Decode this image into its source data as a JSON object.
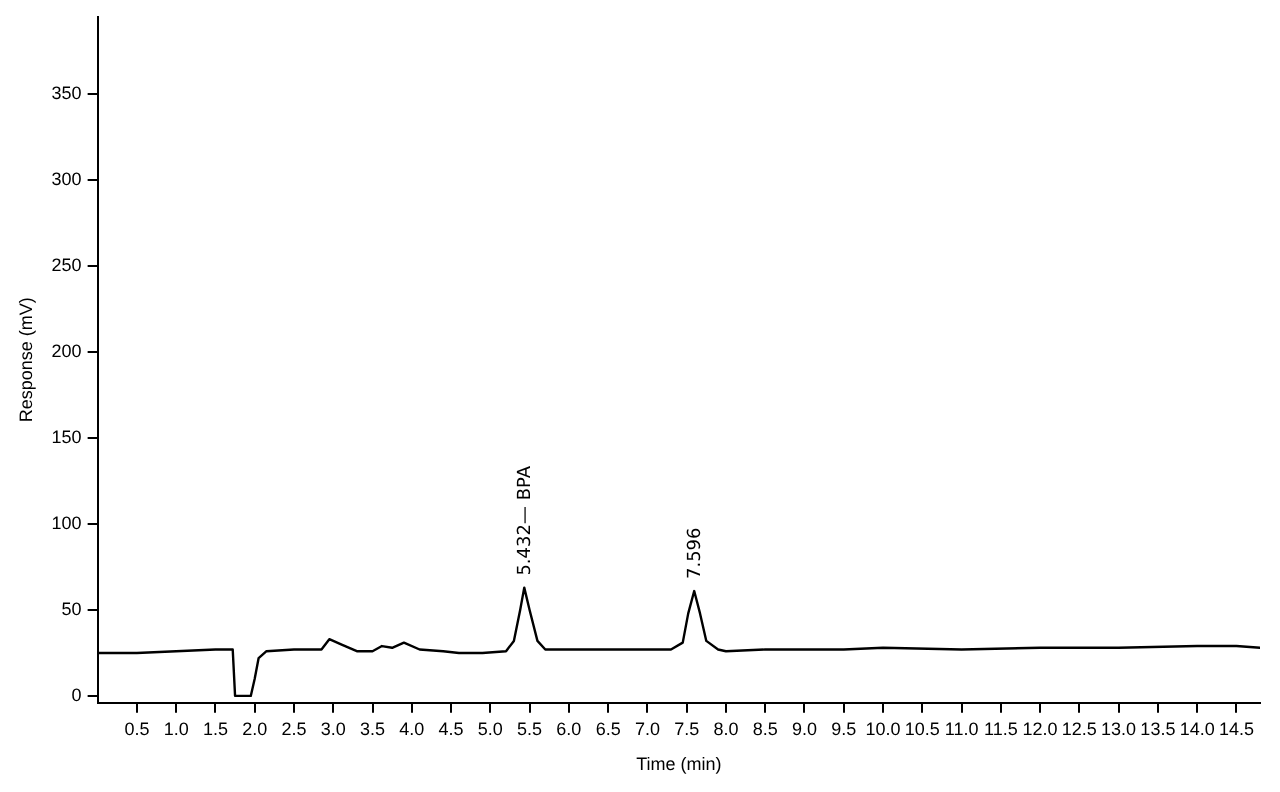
{
  "chart_data": {
    "type": "line",
    "xlabel": "Time (min)",
    "ylabel": "Response (mV)",
    "color": "#000000",
    "x": [
      0,
      0.5,
      1.0,
      1.5,
      1.72,
      1.75,
      1.95,
      2.0,
      2.05,
      2.15,
      2.5,
      2.85,
      2.95,
      3.1,
      3.3,
      3.5,
      3.62,
      3.75,
      3.9,
      4.1,
      4.4,
      4.6,
      4.9,
      5.2,
      5.3,
      5.38,
      5.432,
      5.5,
      5.6,
      5.7,
      6.0,
      6.5,
      7.3,
      7.45,
      7.52,
      7.596,
      7.67,
      7.75,
      7.9,
      8.0,
      8.5,
      9.5,
      10.0,
      11.0,
      12.0,
      13.0,
      14.0,
      14.5,
      14.8
    ],
    "values": [
      25,
      25,
      26,
      27,
      27,
      0,
      0,
      10,
      22,
      26,
      27,
      27,
      33,
      30,
      26,
      26,
      29,
      28,
      31,
      27,
      26,
      25,
      25,
      26,
      32,
      50,
      63,
      50,
      32,
      27,
      27,
      27,
      27,
      31,
      48,
      61,
      48,
      32,
      27,
      26,
      27,
      27,
      28,
      27,
      28,
      28,
      29,
      29,
      28
    ],
    "xlim": [
      0,
      14.8
    ],
    "ylim": [
      -4,
      395
    ],
    "xticks": [
      0.5,
      {
        "value": 1,
        "label": "1.0"
      },
      1.5,
      {
        "value": 2,
        "label": "2.0"
      },
      2.5,
      {
        "value": 3,
        "label": "3.0"
      },
      3.5,
      {
        "value": 4,
        "label": "4.0"
      },
      4.5,
      {
        "value": 5,
        "label": "5.0"
      },
      5.5,
      {
        "value": 6,
        "label": "6.0"
      },
      6.5,
      {
        "value": 7,
        "label": "7.0"
      },
      7.5,
      {
        "value": 8,
        "label": "8.0"
      },
      8.5,
      {
        "value": 9,
        "label": "9.0"
      },
      9.5,
      {
        "value": 10,
        "label": "10.0"
      },
      10.5,
      {
        "value": 11,
        "label": "11.0"
      },
      11.5,
      {
        "value": 12,
        "label": "12.0"
      },
      12.5,
      {
        "value": 13,
        "label": "13.0"
      },
      13.5,
      {
        "value": 14,
        "label": "14.0"
      },
      14.5
    ],
    "yticks": [
      0,
      50,
      100,
      150,
      200,
      250,
      300,
      350
    ],
    "grid": false,
    "legend": false,
    "marker": "none",
    "line_style": "solid",
    "annotations": [
      {
        "text": "5.432— BPA",
        "x": 5.432,
        "y": 63
      },
      {
        "text": "7.596",
        "x": 7.596,
        "y": 61
      }
    ]
  }
}
